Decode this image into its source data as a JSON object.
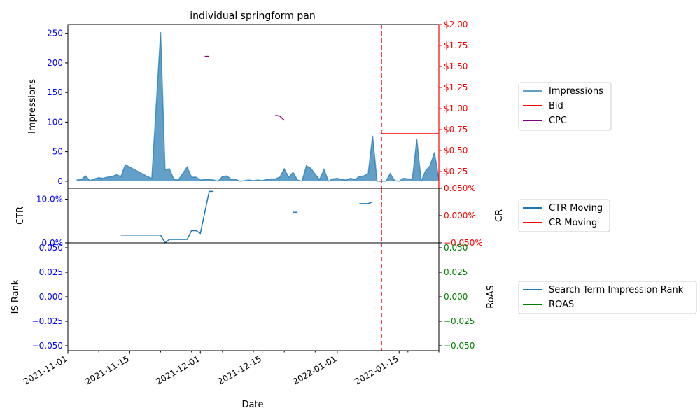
{
  "chart_data": {
    "type": "area",
    "title": "individual springform pan",
    "xlabel": "Date",
    "x_ticks": [
      "2021-11-01",
      "2021-11-15",
      "2021-12-01",
      "2021-12-15",
      "2022-01-01",
      "2022-01-15"
    ],
    "x_range": [
      "2021-11-01",
      "2022-01-24"
    ],
    "event_date": "2022-01-11",
    "colors": {
      "impressions": "#1f77b4",
      "bid": "#ff0000",
      "cpc": "#800080",
      "ctr": "#1f77b4",
      "cr": "#ff0000",
      "rank": "#1f77b4",
      "roas": "#008000",
      "left_axis": "#0000ff"
    },
    "panels": [
      {
        "id": "impressions",
        "ylabel": "Impressions",
        "ylim": [
          -12,
          265
        ],
        "y_ticks": [
          0,
          50,
          100,
          150,
          200,
          250
        ],
        "y_ticklabels": [
          "0",
          "50",
          "100",
          "150",
          "200",
          "250"
        ],
        "right_ylim": [
          0.05,
          2.0
        ],
        "right_ticks": [
          0.25,
          0.5,
          0.75,
          1.0,
          1.25,
          1.5,
          1.75,
          2.0
        ],
        "right_ticklabels": [
          "$0.25",
          "$0.50",
          "$0.75",
          "$1.00",
          "$1.25",
          "$1.50",
          "$1.75",
          "$2.00"
        ],
        "legend": [
          "Impressions",
          "Bid",
          "CPC"
        ],
        "series": [
          {
            "name": "Impressions",
            "kind": "area",
            "points": [
              [
                "2021-11-03",
                2
              ],
              [
                "2021-11-04",
                3
              ],
              [
                "2021-11-05",
                9
              ],
              [
                "2021-11-06",
                1
              ],
              [
                "2021-11-07",
                4
              ],
              [
                "2021-11-08",
                6
              ],
              [
                "2021-11-09",
                5
              ],
              [
                "2021-11-10",
                7
              ],
              [
                "2021-11-11",
                8
              ],
              [
                "2021-11-12",
                11
              ],
              [
                "2021-11-13",
                8
              ],
              [
                "2021-11-14",
                28
              ],
              [
                "2021-11-19",
                8
              ],
              [
                "2021-11-20",
                5
              ],
              [
                "2021-11-22",
                252
              ],
              [
                "2021-11-23",
                20
              ],
              [
                "2021-11-24",
                21
              ],
              [
                "2021-11-25",
                3
              ],
              [
                "2021-11-26",
                2
              ],
              [
                "2021-11-28",
                24
              ],
              [
                "2021-11-29",
                7
              ],
              [
                "2021-11-30",
                7
              ],
              [
                "2021-12-01",
                2
              ],
              [
                "2021-12-02",
                3
              ],
              [
                "2021-12-03",
                3
              ],
              [
                "2021-12-04",
                2
              ],
              [
                "2021-12-05",
                0
              ],
              [
                "2021-12-06",
                8
              ],
              [
                "2021-12-07",
                9
              ],
              [
                "2021-12-08",
                3
              ],
              [
                "2021-12-09",
                3
              ],
              [
                "2021-12-10",
                0
              ],
              [
                "2021-12-11",
                1
              ],
              [
                "2021-12-12",
                2
              ],
              [
                "2021-12-13",
                1
              ],
              [
                "2021-12-14",
                2
              ],
              [
                "2021-12-15",
                1
              ],
              [
                "2021-12-16",
                3
              ],
              [
                "2021-12-17",
                4
              ],
              [
                "2021-12-18",
                4
              ],
              [
                "2021-12-19",
                7
              ],
              [
                "2021-12-20",
                21
              ],
              [
                "2021-12-21",
                7
              ],
              [
                "2021-12-22",
                15
              ],
              [
                "2021-12-23",
                2
              ],
              [
                "2021-12-24",
                0
              ],
              [
                "2021-12-25",
                26
              ],
              [
                "2021-12-26",
                22
              ],
              [
                "2021-12-27",
                12
              ],
              [
                "2021-12-28",
                3
              ],
              [
                "2021-12-29",
                20
              ],
              [
                "2021-12-30",
                0
              ],
              [
                "2021-12-31",
                4
              ],
              [
                "2022-01-01",
                5
              ],
              [
                "2022-01-02",
                3
              ],
              [
                "2022-01-03",
                2
              ],
              [
                "2022-01-04",
                5
              ],
              [
                "2022-01-05",
                3
              ],
              [
                "2022-01-06",
                8
              ],
              [
                "2022-01-07",
                9
              ],
              [
                "2022-01-08",
                13
              ],
              [
                "2022-01-09",
                77
              ],
              [
                "2022-01-10",
                0
              ],
              [
                "2022-01-11",
                0
              ],
              [
                "2022-01-12",
                0
              ],
              [
                "2022-01-13",
                13
              ],
              [
                "2022-01-14",
                1
              ],
              [
                "2022-01-15",
                0
              ],
              [
                "2022-01-16",
                5
              ],
              [
                "2022-01-17",
                4
              ],
              [
                "2022-01-18",
                4
              ],
              [
                "2022-01-19",
                71
              ],
              [
                "2022-01-20",
                0
              ],
              [
                "2022-01-21",
                18
              ],
              [
                "2022-01-22",
                26
              ],
              [
                "2022-01-23",
                49
              ],
              [
                "2022-01-24",
                3
              ]
            ]
          },
          {
            "name": "Bid",
            "kind": "line",
            "axis": "right",
            "points": [
              [
                "2022-01-11",
                0.7
              ],
              [
                "2022-01-24",
                0.7
              ]
            ]
          },
          {
            "name": "CPC",
            "kind": "line",
            "axis": "right",
            "segments": [
              [
                [
                  "2021-12-02",
                  1.62
                ],
                [
                  "2021-12-03",
                  1.62
                ]
              ],
              [
                [
                  "2021-12-18",
                  0.92
                ],
                [
                  "2021-12-19",
                  0.91
                ],
                [
                  "2021-12-20",
                  0.86
                ]
              ]
            ]
          }
        ]
      },
      {
        "id": "ctr",
        "ylabel": "CTR",
        "ylim": [
          0,
          0.125
        ],
        "y_ticks": [
          0,
          0.1
        ],
        "y_ticklabels": [
          "0.0%",
          "10.0%"
        ],
        "right_ylabel": "CR",
        "right_ylim": [
          -0.05,
          0.05
        ],
        "right_ticks": [
          -0.05,
          0.0,
          0.05
        ],
        "right_ticklabels": [
          "−0.050%",
          "0.000%",
          "0.050%"
        ],
        "legend": [
          "CTR Moving",
          "CR Moving"
        ],
        "series": [
          {
            "name": "CTR Moving",
            "kind": "line",
            "segments": [
              [
                [
                  "2021-11-13",
                  0.018
                ],
                [
                  "2021-11-22",
                  0.018
                ],
                [
                  "2021-11-23",
                  0.0
                ],
                [
                  "2021-11-24",
                  0.008
                ],
                [
                  "2021-11-28",
                  0.008
                ],
                [
                  "2021-11-29",
                  0.028
                ],
                [
                  "2021-11-30",
                  0.028
                ],
                [
                  "2021-12-01",
                  0.022
                ],
                [
                  "2021-12-03",
                  0.118
                ],
                [
                  "2021-12-04",
                  0.118
                ]
              ],
              [
                [
                  "2021-12-22",
                  0.07
                ],
                [
                  "2021-12-23",
                  0.07
                ]
              ],
              [
                [
                  "2022-01-06",
                  0.09
                ],
                [
                  "2022-01-08",
                  0.09
                ],
                [
                  "2022-01-09",
                  0.094
                ]
              ]
            ]
          }
        ]
      },
      {
        "id": "rank",
        "ylabel": "IS Rank",
        "ylim": [
          -0.055,
          0.055
        ],
        "y_ticks": [
          -0.05,
          -0.025,
          0.0,
          0.025,
          0.05
        ],
        "y_ticklabels": [
          "−0.050",
          "−0.025",
          "0.000",
          "0.025",
          "0.050"
        ],
        "right_ylabel": "RoAS",
        "right_ylim": [
          -0.055,
          0.055
        ],
        "right_ticks": [
          -0.05,
          -0.025,
          0.0,
          0.025,
          0.05
        ],
        "right_ticklabels": [
          "−0.050",
          "−0.025",
          "0.000",
          "0.025",
          "0.050"
        ],
        "legend": [
          "Search Term Impression Rank",
          "ROAS"
        ],
        "series": []
      }
    ]
  }
}
